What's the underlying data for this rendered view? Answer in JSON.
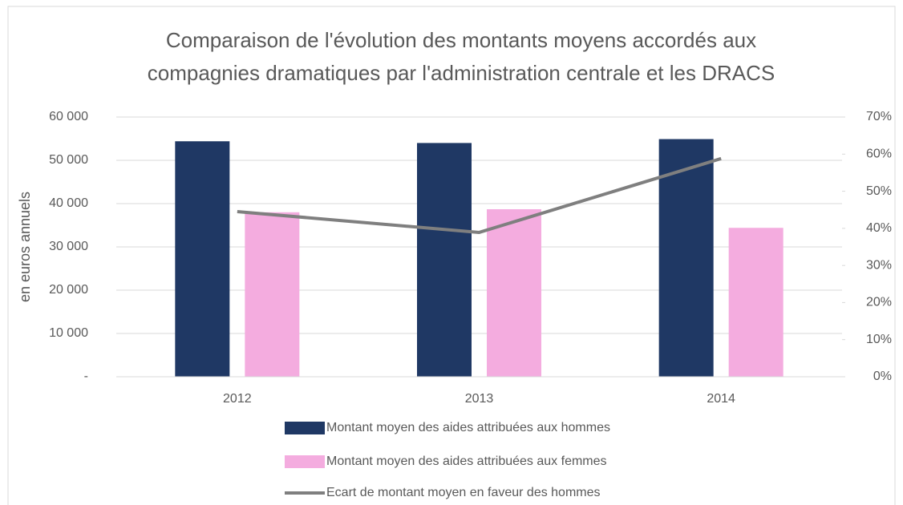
{
  "chart_data": {
    "type": "bar+line",
    "title": "Comparaison de l'évolution des montants moyens accordés aux compagnies dramatiques par l'administration centrale et les DRACS",
    "y_label": "en euros annuels",
    "categories": [
      "2012",
      "2013",
      "2014"
    ],
    "series": [
      {
        "name": "Montant moyen des aides attribuées aux hommes",
        "type": "bar",
        "color": "#1f3864",
        "values": [
          54400,
          54000,
          54900
        ]
      },
      {
        "name": "Montant moyen des aides attribuées aux femmes",
        "type": "bar",
        "color": "#f4acdf",
        "values": [
          38000,
          38700,
          34400
        ]
      },
      {
        "name": "Ecart de montant moyen en faveur des hommes",
        "type": "line",
        "color": "#7f7f7f",
        "axis": "y2",
        "values": [
          44.5,
          38.9,
          58.8
        ]
      }
    ],
    "ylim": [
      0,
      60000
    ],
    "yticks": [
      {
        "value": 0,
        "label": "-"
      },
      {
        "value": 10000,
        "label": "10 000"
      },
      {
        "value": 20000,
        "label": "20 000"
      },
      {
        "value": 30000,
        "label": "30 000"
      },
      {
        "value": 40000,
        "label": "40 000"
      },
      {
        "value": 50000,
        "label": "50 000"
      },
      {
        "value": 60000,
        "label": "60 000"
      }
    ],
    "y2lim": [
      0,
      70
    ],
    "y2ticks": [
      {
        "value": 0,
        "label": "0%"
      },
      {
        "value": 10,
        "label": "10%"
      },
      {
        "value": 20,
        "label": "20%"
      },
      {
        "value": 30,
        "label": "30%"
      },
      {
        "value": 40,
        "label": "40%"
      },
      {
        "value": 50,
        "label": "50%"
      },
      {
        "value": 60,
        "label": "60%"
      },
      {
        "value": 70,
        "label": "70%"
      }
    ],
    "grid": true,
    "legend": "bottom"
  }
}
